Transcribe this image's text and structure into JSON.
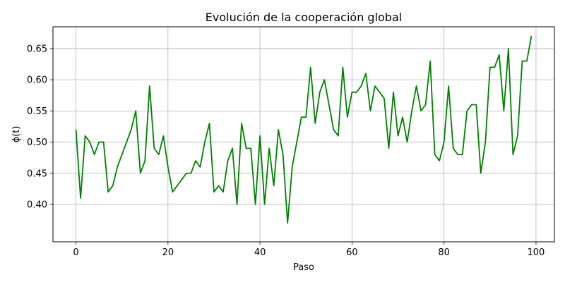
{
  "chart_data": {
    "type": "line",
    "title": "Evolución de la cooperación global",
    "xlabel": "Paso",
    "ylabel": "ϕ(t)",
    "xlim": [
      -5,
      104
    ],
    "ylim": [
      0.34,
      0.685
    ],
    "xticks": [
      0,
      20,
      40,
      60,
      80,
      100
    ],
    "xtick_labels": [
      "0",
      "20",
      "40",
      "60",
      "80",
      "100"
    ],
    "yticks": [
      0.4,
      0.45,
      0.5,
      0.55,
      0.6,
      0.65
    ],
    "ytick_labels": [
      "0.40",
      "0.45",
      "0.50",
      "0.55",
      "0.60",
      "0.65"
    ],
    "grid": true,
    "line_color": "#008000",
    "series": [
      {
        "x": [
          0,
          1,
          2,
          3,
          4,
          5,
          6,
          7,
          8,
          9,
          10,
          11,
          12,
          13,
          14,
          15,
          16,
          17,
          18,
          19,
          20,
          21,
          22,
          23,
          24,
          25,
          26,
          27,
          28,
          29,
          30,
          31,
          32,
          33,
          34,
          35,
          36,
          37,
          38,
          39,
          40,
          41,
          42,
          43,
          44,
          45,
          46,
          47,
          48,
          49,
          50,
          51,
          52,
          53,
          54,
          55,
          56,
          57,
          58,
          59,
          60,
          61,
          62,
          63,
          64,
          65,
          66,
          67,
          68,
          69,
          70,
          71,
          72,
          73,
          74,
          75,
          76,
          77,
          78,
          79,
          80,
          81,
          82,
          83,
          84,
          85,
          86,
          87,
          88,
          89,
          90,
          91,
          92,
          93,
          94,
          95,
          96,
          97,
          98,
          99
        ],
        "values": [
          0.52,
          0.41,
          0.51,
          0.5,
          0.48,
          0.5,
          0.5,
          0.42,
          0.43,
          0.46,
          0.48,
          0.5,
          0.52,
          0.55,
          0.45,
          0.47,
          0.59,
          0.49,
          0.48,
          0.51,
          0.46,
          0.42,
          0.43,
          0.44,
          0.45,
          0.45,
          0.47,
          0.46,
          0.5,
          0.53,
          0.42,
          0.43,
          0.42,
          0.47,
          0.49,
          0.4,
          0.53,
          0.49,
          0.49,
          0.4,
          0.51,
          0.4,
          0.49,
          0.43,
          0.52,
          0.48,
          0.37,
          0.46,
          0.5,
          0.54,
          0.54,
          0.62,
          0.53,
          0.58,
          0.6,
          0.56,
          0.52,
          0.51,
          0.62,
          0.54,
          0.58,
          0.58,
          0.59,
          0.61,
          0.55,
          0.59,
          0.58,
          0.57,
          0.49,
          0.58,
          0.51,
          0.54,
          0.5,
          0.55,
          0.59,
          0.55,
          0.56,
          0.63,
          0.48,
          0.47,
          0.5,
          0.59,
          0.49,
          0.48,
          0.48,
          0.55,
          0.56,
          0.56,
          0.45,
          0.5,
          0.62,
          0.62,
          0.64,
          0.55,
          0.65,
          0.48,
          0.51,
          0.63,
          0.63,
          0.67
        ]
      }
    ]
  }
}
